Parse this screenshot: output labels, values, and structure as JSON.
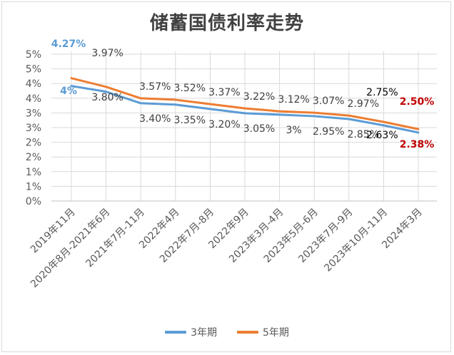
{
  "chart_data": {
    "type": "line",
    "title": "储蓄国债利率走势",
    "categories": [
      "2019年11月",
      "2020年8月-2021年6月",
      "2021年7月-11月",
      "2022年4月",
      "2022年7月-8月",
      "2022年9月",
      "2023年3月-4月",
      "2023年5月-6月",
      "2023年7月-9月",
      "2023年10月-11月",
      "2024年3月"
    ],
    "y_ticks": [
      "0%",
      "1%",
      "1%",
      "2%",
      "2%",
      "3%",
      "3%",
      "4%",
      "4%",
      "5%",
      "5%"
    ],
    "ylim": [
      0,
      5
    ],
    "grid": true,
    "legend_position": "bottom",
    "series": [
      {
        "name": "3年期",
        "color": "#5b9bd5",
        "values": [
          4.0,
          3.8,
          3.4,
          3.35,
          3.2,
          3.05,
          3.0,
          2.95,
          2.85,
          2.63,
          2.38
        ],
        "labels": [
          "4%",
          "3.80%",
          "3.40%",
          "3.35%",
          "3.20%",
          "3.05%",
          "3%",
          "2.95%",
          "2.85%",
          "2.63%",
          "2.38%"
        ]
      },
      {
        "name": "5年期",
        "color": "#ed7d31",
        "values": [
          4.27,
          3.97,
          3.57,
          3.52,
          3.37,
          3.22,
          3.12,
          3.07,
          2.97,
          2.75,
          2.5
        ],
        "labels": [
          "4.27%",
          "3.97%",
          "3.57%",
          "3.52%",
          "3.37%",
          "3.22%",
          "3.12%",
          "3.07%",
          "2.97%",
          "2.75%",
          "2.50%"
        ]
      }
    ],
    "label_colors": {
      "default": "#404040",
      "highlight_first": "#5b9bd5",
      "highlight_last": "#c00000",
      "dark": "#000000"
    }
  }
}
